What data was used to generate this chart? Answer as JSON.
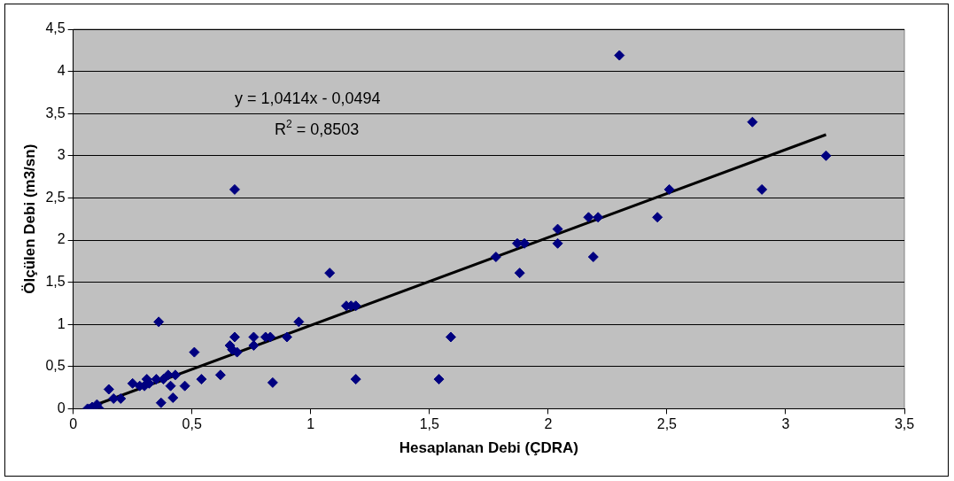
{
  "chart_data": {
    "type": "scatter",
    "xlabel": "Hesaplanan Debi (ÇDRA)",
    "ylabel": "Ölçülen Debi (m3/sn)",
    "annotations": [
      "y = 1,0414x - 0,0494",
      "R$^{2}$ = 0,8503"
    ],
    "series": [
      {
        "color": "#000080",
        "marker": "diamond",
        "x": [
          0.06,
          0.07,
          0.08,
          0.1,
          0.11,
          0.15,
          0.17,
          0.2,
          0.25,
          0.28,
          0.3,
          0.31,
          0.32,
          0.35,
          0.36,
          0.37,
          0.38,
          0.4,
          0.41,
          0.42,
          0.43,
          0.47,
          0.51,
          0.54,
          0.62,
          0.66,
          0.67,
          0.68,
          0.68,
          0.69,
          0.76,
          0.76,
          0.81,
          0.83,
          0.84,
          0.9,
          0.95,
          1.08,
          1.15,
          1.17,
          1.19,
          1.19,
          1.54,
          1.59,
          1.78,
          1.87,
          1.88,
          1.9,
          2.04,
          2.04,
          2.17,
          2.19,
          2.21,
          2.3,
          2.46,
          2.51,
          2.86,
          2.9,
          3.17
        ],
        "values": [
          0,
          0,
          0.02,
          0.05,
          0,
          0.23,
          0.12,
          0.12,
          0.3,
          0.27,
          0.27,
          0.35,
          0.3,
          0.35,
          1.03,
          0.07,
          0.35,
          0.4,
          0.27,
          0.13,
          0.4,
          0.27,
          0.67,
          0.35,
          0.4,
          0.75,
          0.7,
          0.85,
          2.6,
          0.67,
          0.85,
          0.75,
          0.85,
          0.85,
          0.31,
          0.85,
          1.03,
          1.61,
          1.22,
          1.22,
          1.22,
          0.35,
          0.35,
          0.85,
          1.8,
          1.96,
          1.61,
          1.96,
          2.13,
          1.96,
          2.27,
          1.8,
          2.27,
          4.19,
          2.27,
          2.6,
          3.4,
          2.6,
          3
        ]
      },
      {
        "type": "line",
        "color": "#000000",
        "marker": "none",
        "x": [
          0.07,
          3.17
        ],
        "values": [
          0.02,
          3.25
        ]
      }
    ],
    "xlim": [
      0,
      3.5
    ],
    "xticks": [
      0,
      {
        "value": 0.5,
        "label": "0,5"
      },
      1,
      {
        "value": 1.5,
        "label": "1,5"
      },
      2,
      {
        "value": 2.5,
        "label": "2,5"
      },
      3,
      {
        "value": 3.5,
        "label": "3,5"
      }
    ],
    "ylim": [
      0,
      4.5
    ],
    "yticks": [
      0,
      {
        "value": 0.5,
        "label": "0,5"
      },
      1,
      {
        "value": 1.5,
        "label": "1,5"
      },
      2,
      {
        "value": 2.5,
        "label": "2,5"
      },
      3,
      {
        "value": 3.5,
        "label": "3,5"
      },
      4,
      {
        "value": 4.5,
        "label": "4,5"
      }
    ],
    "grid": "y",
    "legend": false
  }
}
